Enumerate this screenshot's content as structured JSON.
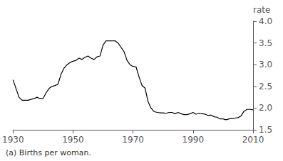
{
  "chart_data": {
    "type": "line",
    "ylabel": "rate",
    "footnote": "(a) Births per woman.",
    "xlim": [
      1930,
      2010
    ],
    "ylim": [
      1.5,
      4.0
    ],
    "xticks": [
      1930,
      1950,
      1970,
      1990,
      2010
    ],
    "yticks": [
      1.5,
      {
        "value": 2.0,
        "label": "2.0"
      },
      2.5,
      {
        "value": 3.0,
        "label": "3.0"
      },
      3.5,
      {
        "value": 4.0,
        "label": "4.0"
      }
    ],
    "grid": false,
    "color": "#000000",
    "x": [
      1930,
      1931,
      1932,
      1933,
      1934,
      1935,
      1936,
      1937,
      1938,
      1939,
      1940,
      1941,
      1942,
      1943,
      1944,
      1945,
      1946,
      1947,
      1948,
      1949,
      1950,
      1951,
      1952,
      1953,
      1954,
      1955,
      1956,
      1957,
      1958,
      1959,
      1960,
      1961,
      1962,
      1963,
      1964,
      1965,
      1966,
      1967,
      1968,
      1969,
      1970,
      1971,
      1972,
      1973,
      1974,
      1975,
      1976,
      1977,
      1978,
      1979,
      1980,
      1981,
      1982,
      1983,
      1984,
      1985,
      1986,
      1987,
      1988,
      1989,
      1990,
      1991,
      1992,
      1993,
      1994,
      1995,
      1996,
      1997,
      1998,
      1999,
      2000,
      2001,
      2002,
      2003,
      2004,
      2005,
      2006,
      2007,
      2008,
      2009,
      2010
    ],
    "values": [
      2.65,
      2.45,
      2.25,
      2.18,
      2.18,
      2.18,
      2.2,
      2.22,
      2.25,
      2.22,
      2.22,
      2.35,
      2.45,
      2.5,
      2.52,
      2.55,
      2.78,
      2.92,
      3.0,
      3.05,
      3.08,
      3.1,
      3.15,
      3.12,
      3.17,
      3.2,
      3.15,
      3.12,
      3.18,
      3.2,
      3.45,
      3.55,
      3.55,
      3.55,
      3.55,
      3.5,
      3.4,
      3.3,
      3.1,
      3.0,
      2.96,
      2.95,
      2.72,
      2.52,
      2.46,
      2.15,
      2.0,
      1.92,
      1.9,
      1.89,
      1.89,
      1.88,
      1.9,
      1.9,
      1.87,
      1.9,
      1.87,
      1.85,
      1.85,
      1.87,
      1.9,
      1.86,
      1.88,
      1.87,
      1.86,
      1.83,
      1.84,
      1.8,
      1.79,
      1.75,
      1.75,
      1.73,
      1.75,
      1.76,
      1.77,
      1.78,
      1.82,
      1.93,
      1.97,
      1.97,
      1.96
    ]
  }
}
